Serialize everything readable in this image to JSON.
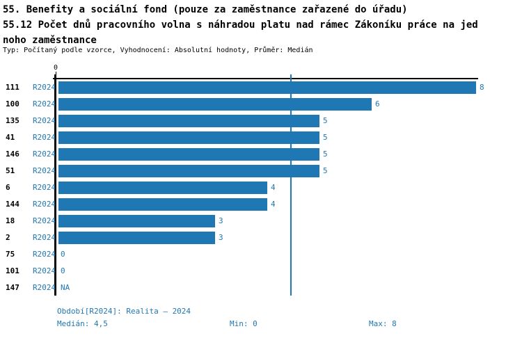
{
  "header": {
    "line1": "55. Benefity a sociální fond (pouze za zaměstnance zařazené do úřadu)",
    "line2": "55.12 Počet dnů pracovního volna s náhradou platu nad rámec Zákoníku práce na jed",
    "line3": "noho zaměstnance",
    "meta": "Typ: Počítaný podle vzorce, Vyhodnocení: Absolutní hodnoty, Průměr: Medián"
  },
  "chart_data": {
    "type": "bar",
    "orientation": "horizontal",
    "categories": [
      "111",
      "100",
      "135",
      "41",
      "146",
      "51",
      "6",
      "144",
      "18",
      "2",
      "75",
      "101",
      "147"
    ],
    "series_label": "R2024",
    "values": [
      8,
      6,
      5,
      5,
      5,
      5,
      4,
      4,
      3,
      3,
      0,
      0,
      null
    ],
    "value_labels": [
      "8",
      "6",
      "5",
      "5",
      "5",
      "5",
      "4",
      "4",
      "3",
      "3",
      "0",
      "0",
      "NA"
    ],
    "xlim": [
      0,
      8
    ],
    "x_tick_labels": [
      "0"
    ],
    "median_reference_line": 4.5,
    "bar_color": "#1f77b4",
    "grid": false,
    "legend_position": "none"
  },
  "footer": {
    "period": "Období[R2024]: Realita – 2024",
    "median": "Medián: 4,5",
    "min": "Min: 0",
    "max": "Max: 8"
  },
  "colors": {
    "accent": "#1f77b4",
    "text": "#000000",
    "background": "#ffffff"
  }
}
